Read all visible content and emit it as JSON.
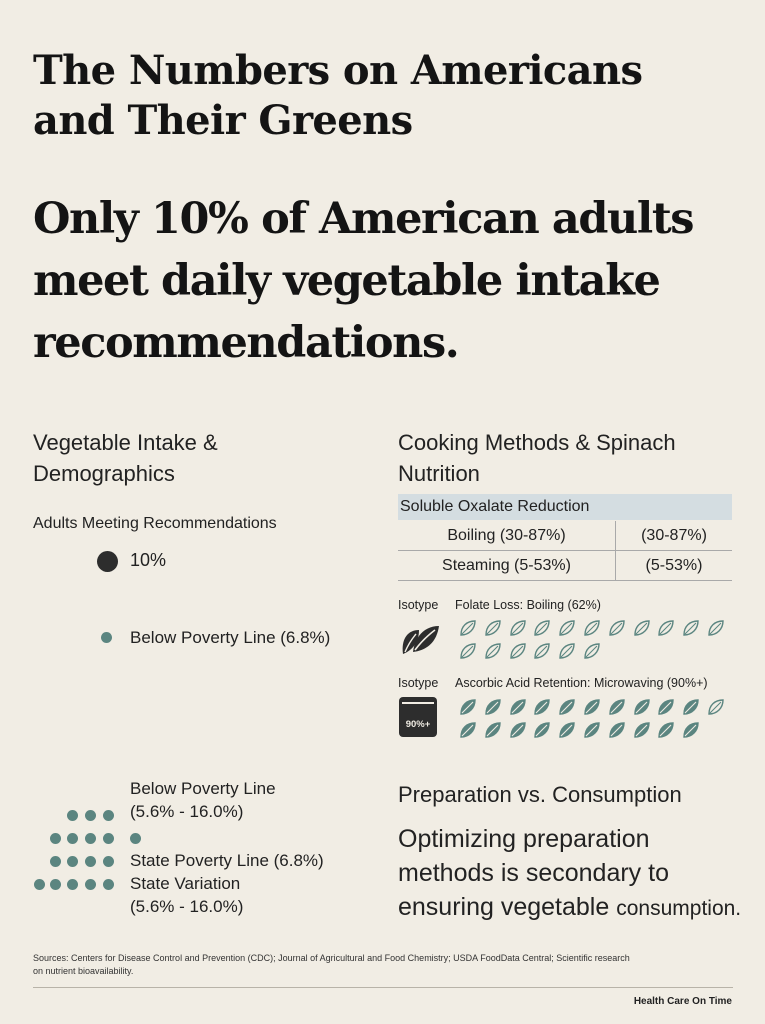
{
  "title": "The Numbers on Americans and Their Greens",
  "headline": "Only 10% of American adults meet daily vegetable intake recommendations.",
  "left": {
    "section_title": "Vegetable Intake & Demographics",
    "adults_label": "Adults Meeting Recommendations",
    "adults_value": "10%",
    "poverty_label": "Below Poverty Line (6.8%)",
    "poverty_range_1": "Below Poverty Line",
    "poverty_range_2": "(5.6% - 16.0%)",
    "state_line": "State Poverty Line (6.8%)",
    "state_var_1": "State Variation",
    "state_var_2": "(5.6% - 16.0%)"
  },
  "right": {
    "section_title": "Cooking Methods & Spinach Nutrition",
    "table_header": "Soluble Oxalate Reduction",
    "rows": [
      {
        "method": "Boiling (30-87%)",
        "value": "(30-87%)"
      },
      {
        "method": "Steaming (5-53%)",
        "value": "(5-53%)"
      }
    ],
    "folate_tag": "Isotype",
    "folate_label": "Folate Loss: Boiling (62%)",
    "ascorbic_tag": "Isotype",
    "ascorbic_label": "Ascorbic Acid Retention: Microwaving (90%+)",
    "microwave_label": "90%+",
    "prep_title": "Preparation vs. Consumption",
    "conclusion_1": "Optimizing preparation methods is secondary to ensuring vegetable",
    "conclusion_2": "consumption."
  },
  "sources": "Sources: Centers for Disease Control and Prevention (CDC); Journal of Agricultural and Food Chemistry; USDA FoodData Central; Scientific research on nutrient bioavailability.",
  "footer": "Health Care On Time",
  "colors": {
    "background": "#f1ede4",
    "teal": "#5b8580",
    "dark": "#2d2d2d",
    "table_header": "#d4dde1"
  }
}
